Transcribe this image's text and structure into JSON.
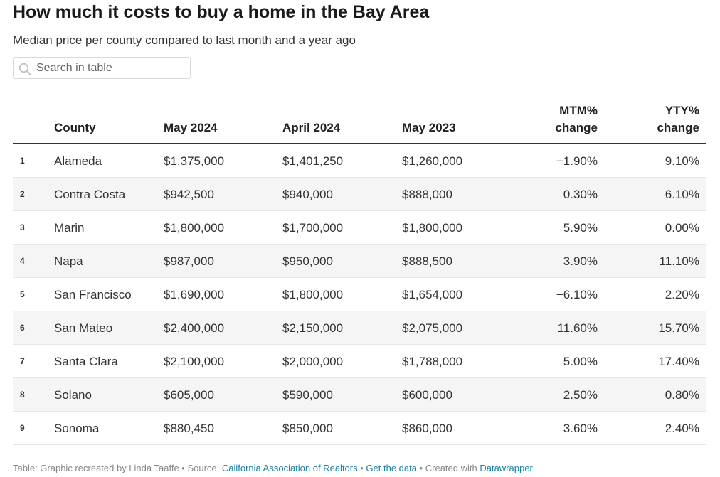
{
  "title": "How much it costs to buy a home in the Bay Area",
  "subtitle": "Median price per county compared to last month and a year ago",
  "search": {
    "placeholder": "Search in table",
    "value": ""
  },
  "colors": {
    "link": "#1d81a2",
    "row_alt": "#f5f5f5",
    "rule": "#333333"
  },
  "chart_data": {
    "type": "table",
    "columns": [
      "County",
      "May 2024",
      "April 2024",
      "May 2023",
      "MTM% change",
      "YTY% change"
    ],
    "header": {
      "county": "County",
      "may2024": "May 2024",
      "apr2024": "April 2024",
      "may2023": "May 2023",
      "mtm_line1": "MTM%",
      "mtm_line2": "change",
      "yty_line1": "YTY%",
      "yty_line2": "change"
    },
    "rows": [
      {
        "index": "1",
        "county": "Alameda",
        "may2024": "$1,375,000",
        "apr2024": "$1,401,250",
        "may2023": "$1,260,000",
        "mtm": "−1.90%",
        "yty": "9.10%"
      },
      {
        "index": "2",
        "county": "Contra Costa",
        "may2024": "$942,500",
        "apr2024": "$940,000",
        "may2023": "$888,000",
        "mtm": "0.30%",
        "yty": "6.10%"
      },
      {
        "index": "3",
        "county": "Marin",
        "may2024": "$1,800,000",
        "apr2024": "$1,700,000",
        "may2023": "$1,800,000",
        "mtm": "5.90%",
        "yty": "0.00%"
      },
      {
        "index": "4",
        "county": "Napa",
        "may2024": "$987,000",
        "apr2024": "$950,000",
        "may2023": "$888,500",
        "mtm": "3.90%",
        "yty": "11.10%"
      },
      {
        "index": "5",
        "county": "San Francisco",
        "may2024": "$1,690,000",
        "apr2024": "$1,800,000",
        "may2023": "$1,654,000",
        "mtm": "−6.10%",
        "yty": "2.20%"
      },
      {
        "index": "6",
        "county": "San Mateo",
        "may2024": "$2,400,000",
        "apr2024": "$2,150,000",
        "may2023": "$2,075,000",
        "mtm": "11.60%",
        "yty": "15.70%"
      },
      {
        "index": "7",
        "county": "Santa Clara",
        "may2024": "$2,100,000",
        "apr2024": "$2,000,000",
        "may2023": "$1,788,000",
        "mtm": "5.00%",
        "yty": "17.40%"
      },
      {
        "index": "8",
        "county": "Solano",
        "may2024": "$605,000",
        "apr2024": "$590,000",
        "may2023": "$600,000",
        "mtm": "2.50%",
        "yty": "0.80%"
      },
      {
        "index": "9",
        "county": "Sonoma",
        "may2024": "$880,450",
        "apr2024": "$850,000",
        "may2023": "$860,000",
        "mtm": "3.60%",
        "yty": "2.40%"
      }
    ]
  },
  "footer": {
    "prefix": "Table: Graphic recreated by Linda Taaffe • Source: ",
    "source_link": "California Association of Realtors",
    "sep1": " • ",
    "data_link": "Get the data",
    "sep2": " • Created with ",
    "tool_link": "Datawrapper"
  }
}
